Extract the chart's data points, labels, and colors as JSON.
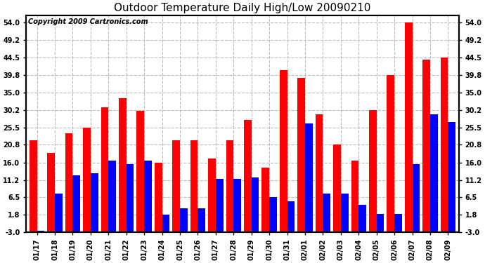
{
  "title": "Outdoor Temperature Daily High/Low 20090210",
  "copyright": "Copyright 2009 Cartronics.com",
  "labels": [
    "01/17",
    "01/18",
    "01/19",
    "01/20",
    "01/21",
    "01/22",
    "01/23",
    "01/24",
    "01/25",
    "01/26",
    "01/27",
    "01/28",
    "01/29",
    "01/30",
    "01/31",
    "02/01",
    "02/02",
    "02/03",
    "02/04",
    "02/05",
    "02/06",
    "02/07",
    "02/08",
    "02/09"
  ],
  "highs": [
    22.0,
    18.5,
    24.0,
    25.5,
    31.0,
    33.5,
    30.0,
    16.0,
    22.0,
    22.0,
    17.0,
    22.0,
    27.5,
    14.5,
    41.0,
    39.0,
    29.0,
    20.8,
    16.5,
    30.2,
    39.8,
    54.0,
    44.0,
    44.5
  ],
  "lows": [
    -2.5,
    7.5,
    12.5,
    13.0,
    16.5,
    15.5,
    16.5,
    1.8,
    3.5,
    3.5,
    11.5,
    11.5,
    12.0,
    6.5,
    5.5,
    26.5,
    7.5,
    7.5,
    4.5,
    2.0,
    2.0,
    15.5,
    29.0,
    27.0
  ],
  "high_color": "#ff0000",
  "low_color": "#0000ff",
  "bg_color": "#ffffff",
  "yticks": [
    -3.0,
    1.8,
    6.5,
    11.2,
    16.0,
    20.8,
    25.5,
    30.2,
    35.0,
    39.8,
    44.5,
    49.2,
    54.0
  ],
  "ymin": -3.0,
  "ymax": 56.0,
  "grid_color": "#bbbbbb",
  "title_fontsize": 11,
  "tick_fontsize": 7,
  "bar_width": 0.42,
  "copyright_fontsize": 7
}
